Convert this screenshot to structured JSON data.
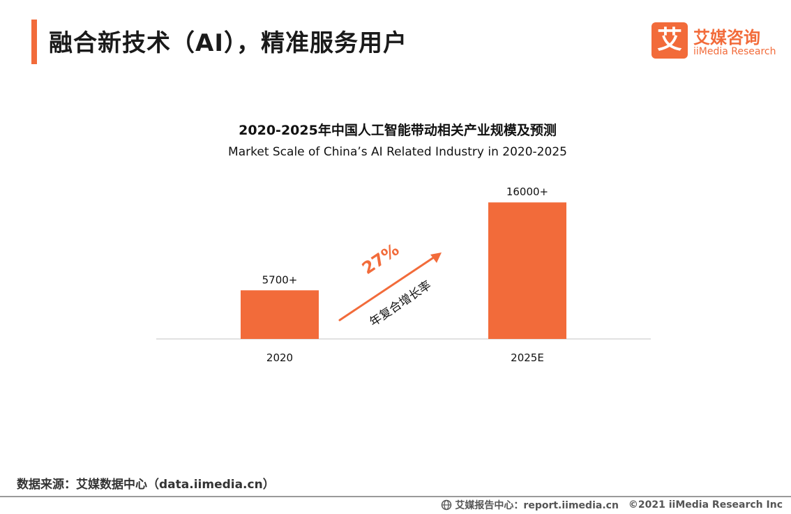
{
  "header": {
    "title": "融合新技术（AI），精准服务用户",
    "logo_mark": "艾",
    "logo_cn": "艾媒咨询",
    "logo_en": "iiMedia Research"
  },
  "chart_data": {
    "type": "bar",
    "title": "2020-2025年中国人工智能带动相关产业规模及预测",
    "subtitle": "Market Scale of China’s AI Related Industry in 2020-2025",
    "categories": [
      "2020",
      "2025E"
    ],
    "values": [
      5700,
      16000
    ],
    "value_labels": [
      "5700+",
      "16000+"
    ],
    "ylim": [
      0,
      17000
    ],
    "grid": false,
    "legend": "none",
    "bar_color": "#f26b3a",
    "annotation": {
      "value": "27%",
      "label": "年复合增长率",
      "color": "#f26b3a"
    }
  },
  "footer": {
    "source": "数据来源：艾媒数据中心（data.iimedia.cn）",
    "report_center": "艾媒报告中心：report.iimedia.cn",
    "copyright": "©2021  iiMedia Research  Inc",
    "globe_icon": "globe-icon"
  }
}
